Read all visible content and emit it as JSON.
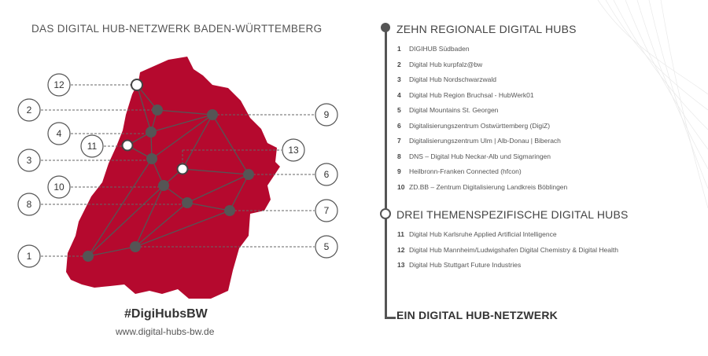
{
  "map_title": "DAS DIGITAL HUB-NETZWERK BADEN-WÜRTTEMBERG",
  "hashtag": "#DigiHubsBW",
  "url": "www.digital-hubs-bw.de",
  "colors": {
    "region": "#b5092e",
    "network": "#555555",
    "text": "#4a4a4a"
  },
  "map_labels": [
    "12",
    "2",
    "4",
    "11",
    "3",
    "10",
    "8",
    "1",
    "9",
    "13",
    "6",
    "7",
    "5"
  ],
  "sections": [
    {
      "title": "ZEHN REGIONALE DIGITAL HUBS",
      "items": [
        {
          "num": "1",
          "text": "DIGIHUB Südbaden"
        },
        {
          "num": "2",
          "text": "Digital Hub kurpfalz@bw"
        },
        {
          "num": "3",
          "text": "Digital Hub Nordschwarzwald"
        },
        {
          "num": "4",
          "text": "Digital Hub Region Bruchsal - HubWerk01"
        },
        {
          "num": "5",
          "text": "Digital Mountains St. Georgen"
        },
        {
          "num": "6",
          "text": "Digitalisierungszentrum Ostwürttemberg (DigiZ)"
        },
        {
          "num": "7",
          "text": "Digitalisierungszentrum Ulm | Alb-Donau | Biberach"
        },
        {
          "num": "8",
          "text": "DNS – Digital Hub Neckar-Alb und Sigmaringen"
        },
        {
          "num": "9",
          "text": "Heilbronn-Franken Connected (hfcon)"
        },
        {
          "num": "10",
          "text": "ZD.BB – Zentrum Digitalisierung Landkreis Böblingen"
        }
      ]
    },
    {
      "title": "DREI THEMENSPEZIFISCHE DIGITAL HUBS",
      "items": [
        {
          "num": "11",
          "text": "Digital Hub Karlsruhe Applied Artificial Intelligence"
        },
        {
          "num": "12",
          "text": "Digital Hub Mannheim/Ludwigshafen Digital Chemistry & Digital Health"
        },
        {
          "num": "13",
          "text": "Digital Hub Stuttgart Future Industries"
        }
      ]
    },
    {
      "title": "EIN DIGITAL HUB-NETZWERK"
    }
  ]
}
